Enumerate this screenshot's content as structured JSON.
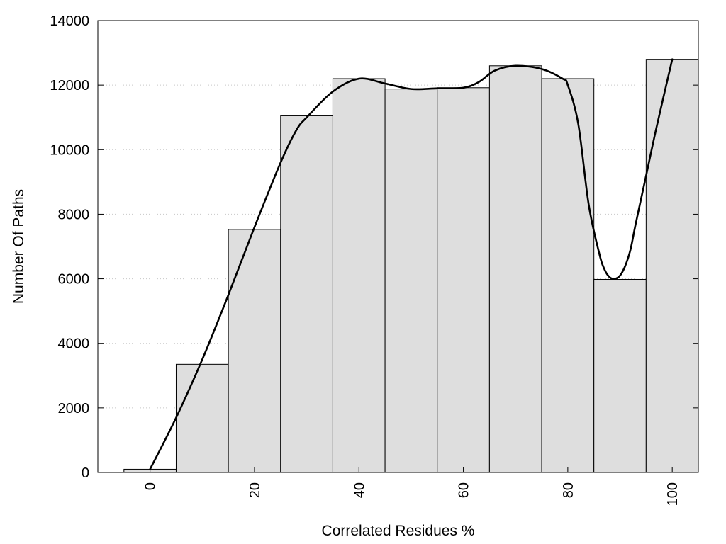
{
  "chart_data": {
    "type": "bar",
    "title": "",
    "xlabel": "Correlated Residues %",
    "ylabel": "Number Of Paths",
    "xlim": [
      -10,
      100
    ],
    "ylim": [
      0,
      14000
    ],
    "grid": {
      "y": true,
      "x": false,
      "style": "dotted"
    },
    "legend": "none",
    "x_ticks": [
      0,
      20,
      40,
      60,
      80,
      100
    ],
    "y_ticks": [
      0,
      2000,
      4000,
      6000,
      8000,
      10000,
      12000,
      14000
    ],
    "bin_width": 10,
    "categories": [
      0,
      10,
      20,
      30,
      40,
      50,
      60,
      70,
      80,
      90,
      100
    ],
    "values": [
      100,
      3350,
      7530,
      11050,
      12200,
      11880,
      11920,
      12600,
      12200,
      5980,
      12800
    ],
    "smooth_curve": {
      "x": [
        0,
        5,
        10,
        15,
        20,
        25,
        28,
        30,
        35,
        40,
        45,
        50,
        55,
        60,
        63,
        66,
        70,
        75,
        79,
        80,
        82,
        84,
        86,
        87,
        88,
        89,
        90,
        91,
        92,
        93,
        95,
        97,
        100
      ],
      "y": [
        100,
        1700,
        3500,
        5500,
        7600,
        9600,
        10600,
        11000,
        11800,
        12200,
        12050,
        11880,
        11900,
        11920,
        12100,
        12450,
        12600,
        12500,
        12200,
        12000,
        10800,
        8300,
        6800,
        6300,
        6050,
        6000,
        6100,
        6400,
        6900,
        7700,
        9200,
        10700,
        12800
      ],
      "color": "#000000"
    },
    "bar_fill": "#dedede",
    "bar_stroke": "#000000"
  }
}
